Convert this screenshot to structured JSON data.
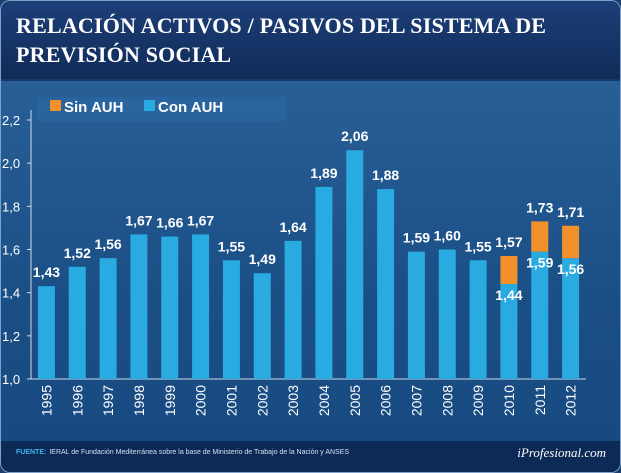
{
  "title_line1": "RELACIÓN ACTIVOS / PASIVOS DEL SISTEMA DE",
  "title_line2": "PREVISIÓN SOCIAL",
  "footer": {
    "source_label": "FUENTE:",
    "source_text": "IERAL de Fundación Mediterránea sobre la base de Ministerio de Trabajo de la Nación y ANSES",
    "brand": "iProfesional.com"
  },
  "colors": {
    "con_auh": "#29abe2",
    "sin_auh": "#f2912c"
  },
  "chart_data": {
    "type": "bar",
    "title": "RELACIÓN ACTIVOS / PASIVOS DEL SISTEMA DE PREVISIÓN SOCIAL",
    "xlabel": "",
    "ylabel": "",
    "ylim": [
      1.0,
      2.2
    ],
    "yticks": [
      "1,0",
      "1,2",
      "1,4",
      "1,6",
      "1,8",
      "2,0",
      "2,2"
    ],
    "legend": [
      "Sin AUH",
      "Con AUH"
    ],
    "categories": [
      "1995",
      "1996",
      "1997",
      "1998",
      "1999",
      "2000",
      "2001",
      "2002",
      "2003",
      "2004",
      "2005",
      "2006",
      "2007",
      "2008",
      "2009",
      "2010",
      "2011",
      "2012"
    ],
    "series": [
      {
        "name": "Con AUH",
        "values": [
          1.43,
          1.52,
          1.56,
          1.67,
          1.66,
          1.67,
          1.55,
          1.49,
          1.64,
          1.89,
          2.06,
          1.88,
          1.59,
          1.6,
          1.55,
          1.44,
          1.59,
          1.56
        ],
        "labels": [
          "1,43",
          "1,52",
          "1,56",
          "1,67",
          "1,66",
          "1,67",
          "1,55",
          "1,49",
          "1,64",
          "1,89",
          "2,06",
          "1,88",
          "1,59",
          "1,60",
          "1,55",
          "1,44",
          "1,59",
          "1,56"
        ]
      },
      {
        "name": "Sin AUH",
        "values": [
          null,
          null,
          null,
          null,
          null,
          null,
          null,
          null,
          null,
          null,
          null,
          null,
          null,
          null,
          null,
          1.57,
          1.73,
          1.71
        ],
        "labels": [
          "",
          "",
          "",
          "",
          "",
          "",
          "",
          "",
          "",
          "",
          "",
          "",
          "",
          "",
          "",
          "1,57",
          "1,73",
          "1,71"
        ]
      }
    ]
  }
}
